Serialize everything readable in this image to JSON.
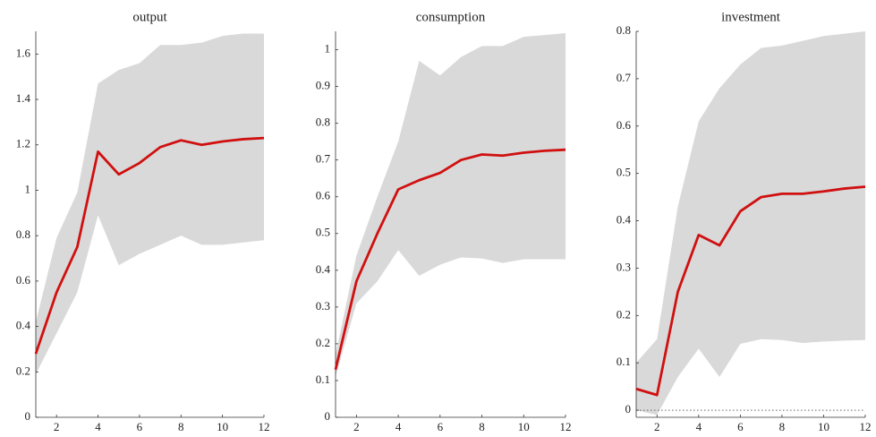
{
  "chart_data": [
    {
      "type": "line",
      "title": "output",
      "x": [
        1,
        2,
        3,
        4,
        5,
        6,
        7,
        8,
        9,
        10,
        11,
        12
      ],
      "xlim": [
        1,
        12
      ],
      "xticks": [
        2,
        4,
        6,
        8,
        10,
        12
      ],
      "ylim": [
        0,
        1.7
      ],
      "yticks": [
        0,
        0.2,
        0.4,
        0.6,
        0.8,
        1,
        1.2,
        1.4,
        1.6
      ],
      "band": {
        "color": "#d9d9d9",
        "lower": [
          0.19,
          0.37,
          0.55,
          0.89,
          0.67,
          0.72,
          0.76,
          0.8,
          0.76,
          0.76,
          0.77,
          0.78
        ],
        "upper": [
          0.42,
          0.79,
          0.99,
          1.47,
          1.53,
          1.56,
          1.64,
          1.64,
          1.65,
          1.68,
          1.69,
          1.69
        ]
      },
      "series": [
        {
          "color": "#d01010",
          "values": [
            0.28,
            0.55,
            0.75,
            1.17,
            1.07,
            1.12,
            1.19,
            1.22,
            1.2,
            1.215,
            1.225,
            1.23
          ]
        }
      ]
    },
    {
      "type": "line",
      "title": "consumption",
      "x": [
        1,
        2,
        3,
        4,
        5,
        6,
        7,
        8,
        9,
        10,
        11,
        12
      ],
      "xlim": [
        1,
        12
      ],
      "xticks": [
        2,
        4,
        6,
        8,
        10,
        12
      ],
      "ylim": [
        0,
        1.05
      ],
      "yticks": [
        0,
        0.1,
        0.2,
        0.3,
        0.4,
        0.5,
        0.6,
        0.7,
        0.8,
        0.9,
        1
      ],
      "band": {
        "color": "#d9d9d9",
        "lower": [
          0.11,
          0.31,
          0.37,
          0.455,
          0.385,
          0.415,
          0.435,
          0.432,
          0.42,
          0.43,
          0.43,
          0.43
        ],
        "upper": [
          0.17,
          0.44,
          0.6,
          0.75,
          0.97,
          0.93,
          0.98,
          1.01,
          1.01,
          1.035,
          1.04,
          1.045
        ]
      },
      "series": [
        {
          "color": "#d01010",
          "values": [
            0.13,
            0.37,
            0.5,
            0.62,
            0.645,
            0.665,
            0.7,
            0.715,
            0.712,
            0.72,
            0.725,
            0.728
          ]
        }
      ]
    },
    {
      "type": "line",
      "title": "investment",
      "x": [
        1,
        2,
        3,
        4,
        5,
        6,
        7,
        8,
        9,
        10,
        11,
        12
      ],
      "xlim": [
        1,
        12
      ],
      "xticks": [
        2,
        4,
        6,
        8,
        10,
        12
      ],
      "ylim": [
        -0.015,
        0.8
      ],
      "yticks": [
        0,
        0.1,
        0.2,
        0.3,
        0.4,
        0.5,
        0.6,
        0.7,
        0.8
      ],
      "hline": 0,
      "band": {
        "color": "#d9d9d9",
        "lower": [
          0,
          -0.01,
          0.07,
          0.13,
          0.07,
          0.14,
          0.15,
          0.148,
          0.142,
          0.145,
          0.147,
          0.148
        ],
        "upper": [
          0.1,
          0.15,
          0.43,
          0.61,
          0.68,
          0.73,
          0.765,
          0.77,
          0.78,
          0.79,
          0.795,
          0.8
        ]
      },
      "series": [
        {
          "color": "#d01010",
          "values": [
            0.045,
            0.032,
            0.25,
            0.37,
            0.348,
            0.42,
            0.45,
            0.457,
            0.457,
            0.462,
            0.468,
            0.472
          ]
        }
      ]
    }
  ]
}
